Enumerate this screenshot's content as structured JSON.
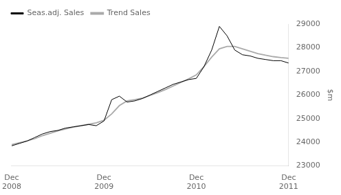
{
  "chart_data": {
    "type": "line",
    "ylabel": "$m",
    "xlim": [
      0,
      36
    ],
    "xticks": [
      {
        "value": 0,
        "label": "Dec\n2008"
      },
      {
        "value": 12,
        "label": "Dec\n2009"
      },
      {
        "value": 24,
        "label": "Dec\n2010"
      },
      {
        "value": 36,
        "label": "Dec\n2011"
      }
    ],
    "ylim": [
      23000,
      29000
    ],
    "yticks": [
      23000,
      24000,
      25000,
      26000,
      27000,
      28000,
      29000
    ],
    "grid": false,
    "legend": "upper left",
    "series": [
      {
        "name": "Trend Sales",
        "color": "#aaaaaa",
        "x": [
          0,
          1,
          2,
          3,
          4,
          5,
          6,
          7,
          8,
          9,
          10,
          11,
          12,
          13,
          14,
          15,
          16,
          17,
          18,
          19,
          20,
          21,
          22,
          23,
          24,
          25,
          26,
          27,
          28,
          29,
          30,
          31,
          32,
          33,
          34,
          35,
          36
        ],
        "values": [
          23900,
          23980,
          24060,
          24150,
          24280,
          24380,
          24480,
          24560,
          24640,
          24700,
          24760,
          24820,
          24930,
          25200,
          25550,
          25750,
          25800,
          25870,
          25980,
          26100,
          26230,
          26380,
          26530,
          26680,
          26850,
          27200,
          27600,
          27950,
          28050,
          28050,
          27950,
          27850,
          27750,
          27680,
          27620,
          27580,
          27550
        ]
      },
      {
        "name": "Seas.adj. Sales",
        "color": "#000000",
        "x": [
          0,
          1,
          2,
          3,
          4,
          5,
          6,
          7,
          8,
          9,
          10,
          11,
          12,
          13,
          14,
          15,
          16,
          17,
          18,
          19,
          20,
          21,
          22,
          23,
          24,
          25,
          26,
          27,
          28,
          29,
          30,
          31,
          32,
          33,
          34,
          35,
          36
        ],
        "values": [
          23850,
          23950,
          24050,
          24200,
          24350,
          24450,
          24500,
          24600,
          24650,
          24700,
          24750,
          24700,
          24900,
          25800,
          25950,
          25700,
          25750,
          25850,
          26000,
          26150,
          26300,
          26450,
          26550,
          26650,
          26700,
          27200,
          27900,
          28900,
          28500,
          27900,
          27700,
          27650,
          27550,
          27500,
          27450,
          27450,
          27350
        ]
      }
    ]
  }
}
